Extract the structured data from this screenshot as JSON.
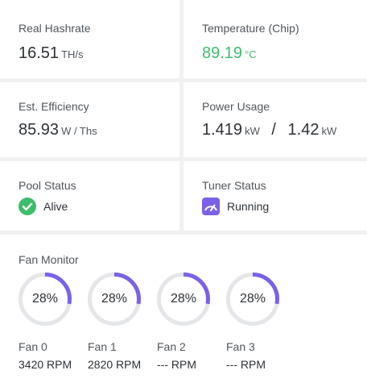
{
  "real_hashrate": {
    "label": "Real Hashrate",
    "value": "16.51",
    "unit": "TH/s"
  },
  "temperature": {
    "label": "Temperature (Chip)",
    "value": "89.19",
    "unit": "°C",
    "color": "#3cbd6c"
  },
  "efficiency": {
    "label": "Est. Efficiency",
    "value": "85.93",
    "unit": "W / Ths"
  },
  "power": {
    "label": "Power Usage",
    "value1": "1.419",
    "unit1": "kW",
    "separator": "/",
    "value2": "1.42",
    "unit2": "kW"
  },
  "pool_status": {
    "label": "Pool Status",
    "value": "Alive",
    "icon": "check-circle-icon",
    "color": "#3cbd6c"
  },
  "tuner_status": {
    "label": "Tuner Status",
    "value": "Running",
    "icon": "gauge-icon",
    "color": "#7b61e8"
  },
  "fan_monitor": {
    "title": "Fan Monitor",
    "accent": "#7b61e8",
    "fans": [
      {
        "name": "Fan 0",
        "percent": "28%",
        "level": 0.28,
        "rpm": "3420 RPM"
      },
      {
        "name": "Fan 1",
        "percent": "28%",
        "level": 0.28,
        "rpm": "2820 RPM"
      },
      {
        "name": "Fan 2",
        "percent": "28%",
        "level": 0.28,
        "rpm": "--- RPM"
      },
      {
        "name": "Fan 3",
        "percent": "28%",
        "level": 0.28,
        "rpm": "--- RPM"
      }
    ]
  }
}
